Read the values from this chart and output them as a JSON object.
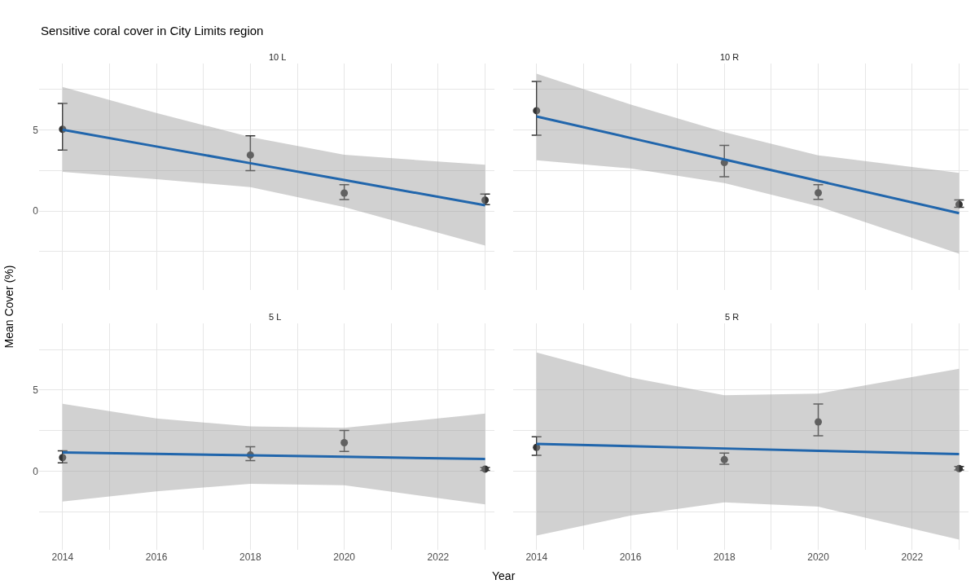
{
  "chart_data": [
    {
      "type": "scatter",
      "title": "Sensitive coral cover in City Limits region",
      "subtitle": "10 L",
      "xlabel": "Year",
      "ylabel": "Mean Cover (%)",
      "xlim": [
        2013.5,
        2023.2
      ],
      "ylim": [
        -4.85,
        9.1
      ],
      "xticks": [
        2014,
        {
          "value": 2015,
          "label": null
        },
        2016,
        {
          "value": 2017,
          "label": null
        },
        2018,
        {
          "value": 2019,
          "label": null
        },
        2020,
        {
          "value": 2021,
          "label": null
        },
        2022,
        {
          "value": 2023,
          "label": null
        }
      ],
      "yticks": [
        {
          "value": -2.5,
          "label": null
        },
        0,
        {
          "value": 2.5,
          "label": null
        },
        5,
        {
          "value": 7.5,
          "label": null
        }
      ],
      "grid": true,
      "tick_labels": "y",
      "series": [
        {
          "marker": "circle",
          "color": "#333333",
          "x": [
            2014,
            2018,
            2020,
            2023
          ],
          "values": [
            5.04,
            3.45,
            1.11,
            0.67
          ],
          "errors": [
            [
              3.76,
              6.64
            ],
            [
              2.49,
              4.64
            ],
            [
              0.71,
              1.62
            ],
            [
              0.4,
              1.05
            ]
          ]
        },
        {
          "type": "line",
          "color": "#2166ac",
          "x": [
            2014,
            2016,
            2018,
            2020,
            2023
          ],
          "values": [
            5.02,
            3.98,
            2.95,
            1.91,
            0.36
          ],
          "lower": [
            2.42,
            1.96,
            1.47,
            0.24,
            -2.13
          ],
          "upper": [
            7.65,
            6.05,
            4.56,
            3.47,
            2.85
          ]
        }
      ]
    },
    {
      "type": "scatter",
      "subtitle": "10 R",
      "xlim": [
        2013.5,
        2023.2
      ],
      "ylim": [
        -4.85,
        9.1
      ],
      "xticks": [
        2014,
        {
          "value": 2015,
          "label": null
        },
        2016,
        {
          "value": 2017,
          "label": null
        },
        2018,
        {
          "value": 2019,
          "label": null
        },
        2020,
        {
          "value": 2021,
          "label": null
        },
        2022,
        {
          "value": 2023,
          "label": null
        }
      ],
      "yticks": [
        {
          "value": -2.5,
          "label": null
        },
        0,
        {
          "value": 2.5,
          "label": null
        },
        5,
        {
          "value": 7.5,
          "label": null
        }
      ],
      "grid": true,
      "tick_labels": false,
      "series": [
        {
          "marker": "circle",
          "color": "#333333",
          "x": [
            2014,
            2018,
            2020,
            2023
          ],
          "values": [
            6.19,
            2.99,
            1.12,
            0.41
          ],
          "errors": [
            [
              4.68,
              8.0
            ],
            [
              2.12,
              4.05
            ],
            [
              0.72,
              1.62
            ],
            [
              0.23,
              0.68
            ]
          ]
        },
        {
          "type": "line",
          "color": "#2166ac",
          "x": [
            2014,
            2016,
            2018,
            2020,
            2023
          ],
          "values": [
            5.83,
            4.51,
            3.18,
            1.86,
            -0.13
          ],
          "lower": [
            3.13,
            2.63,
            1.73,
            0.29,
            -2.63
          ],
          "upper": [
            8.47,
            6.58,
            4.87,
            3.44,
            2.36
          ]
        }
      ]
    },
    {
      "type": "scatter",
      "subtitle": "5 L",
      "xlim": [
        2013.5,
        2023.2
      ],
      "ylim": [
        -4.85,
        9.1
      ],
      "xticks": [
        2014,
        {
          "value": 2015,
          "label": null
        },
        2016,
        {
          "value": 2017,
          "label": null
        },
        2018,
        {
          "value": 2019,
          "label": null
        },
        2020,
        {
          "value": 2021,
          "label": null
        },
        2022,
        {
          "value": 2023,
          "label": null
        }
      ],
      "yticks": [
        {
          "value": -2.5,
          "label": null
        },
        0,
        {
          "value": 2.5,
          "label": null
        },
        5,
        {
          "value": 7.5,
          "label": null
        }
      ],
      "grid": true,
      "series": [
        {
          "marker": "circle",
          "color": "#333333",
          "x": [
            2014,
            2018,
            2020,
            2023
          ],
          "values": [
            0.84,
            1.0,
            1.76,
            0.13
          ],
          "errors": [
            [
              0.51,
              1.25
            ],
            [
              0.65,
              1.51
            ],
            [
              1.22,
              2.51
            ],
            [
              0.05,
              0.22
            ]
          ]
        },
        {
          "type": "line",
          "color": "#2166ac",
          "x": [
            2014,
            2016,
            2018,
            2020,
            2023
          ],
          "values": [
            1.16,
            1.07,
            0.98,
            0.89,
            0.75
          ],
          "lower": [
            -1.87,
            -1.24,
            -0.78,
            -0.87,
            -2.05
          ],
          "upper": [
            4.16,
            3.25,
            2.76,
            2.67,
            3.55
          ]
        }
      ]
    },
    {
      "type": "scatter",
      "subtitle": "5 R",
      "xlim": [
        2013.5,
        2023.2
      ],
      "ylim": [
        -4.85,
        9.1
      ],
      "xticks": [
        2014,
        {
          "value": 2015,
          "label": null
        },
        2016,
        {
          "value": 2017,
          "label": null
        },
        2018,
        {
          "value": 2019,
          "label": null
        },
        2020,
        {
          "value": 2021,
          "label": null
        },
        2022,
        {
          "value": 2023,
          "label": null
        }
      ],
      "yticks": [
        {
          "value": -2.5,
          "label": null
        },
        0,
        {
          "value": 2.5,
          "label": null
        },
        5,
        {
          "value": 7.5,
          "label": null
        }
      ],
      "grid": true,
      "tick_labels": "x",
      "series": [
        {
          "marker": "circle",
          "color": "#333333",
          "x": [
            2014,
            2018,
            2020,
            2023
          ],
          "values": [
            1.47,
            0.71,
            3.04,
            0.16
          ],
          "errors": [
            [
              0.98,
              2.12
            ],
            [
              0.42,
              1.12
            ],
            [
              2.19,
              4.15
            ],
            [
              0.07,
              0.29
            ]
          ]
        },
        {
          "type": "line",
          "color": "#2166ac",
          "x": [
            2014,
            2016,
            2018,
            2020,
            2023
          ],
          "values": [
            1.68,
            1.54,
            1.4,
            1.26,
            1.05
          ],
          "lower": [
            -3.97,
            -2.74,
            -1.92,
            -2.19,
            -4.22
          ],
          "upper": [
            7.32,
            5.78,
            4.69,
            4.78,
            6.32
          ]
        }
      ]
    }
  ]
}
